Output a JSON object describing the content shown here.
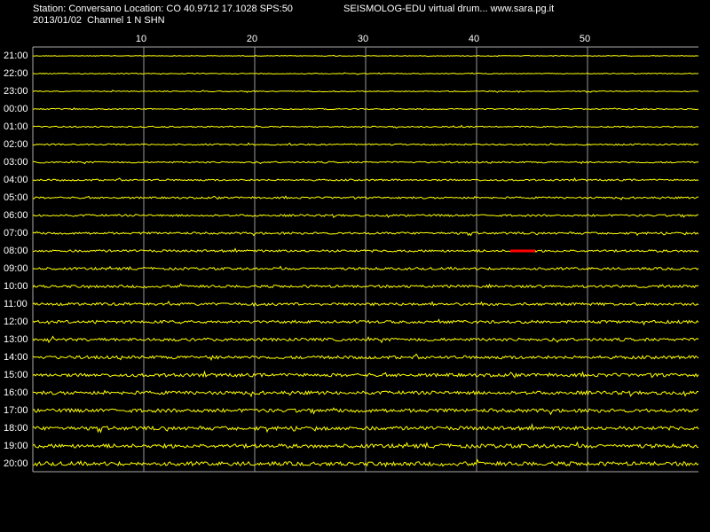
{
  "header": {
    "station": "Station: Conversano Location: CO 40.9712 17.1028 SPS:50",
    "title": "SEISMOLOG-EDU virtual drum... www.sara.pg.it",
    "date_channel": "2013/01/02  Channel 1 N SHN"
  },
  "x_axis": {
    "ticks": [
      10,
      20,
      30,
      40,
      50
    ]
  },
  "rows": [
    "21:00",
    "22:00",
    "23:00",
    "00:00",
    "01:00",
    "02:00",
    "03:00",
    "04:00",
    "05:00",
    "06:00",
    "07:00",
    "08:00",
    "09:00",
    "10:00",
    "11:00",
    "12:00",
    "13:00",
    "14:00",
    "15:00",
    "16:00",
    "17:00",
    "18:00",
    "19:00",
    "20:00"
  ]
}
